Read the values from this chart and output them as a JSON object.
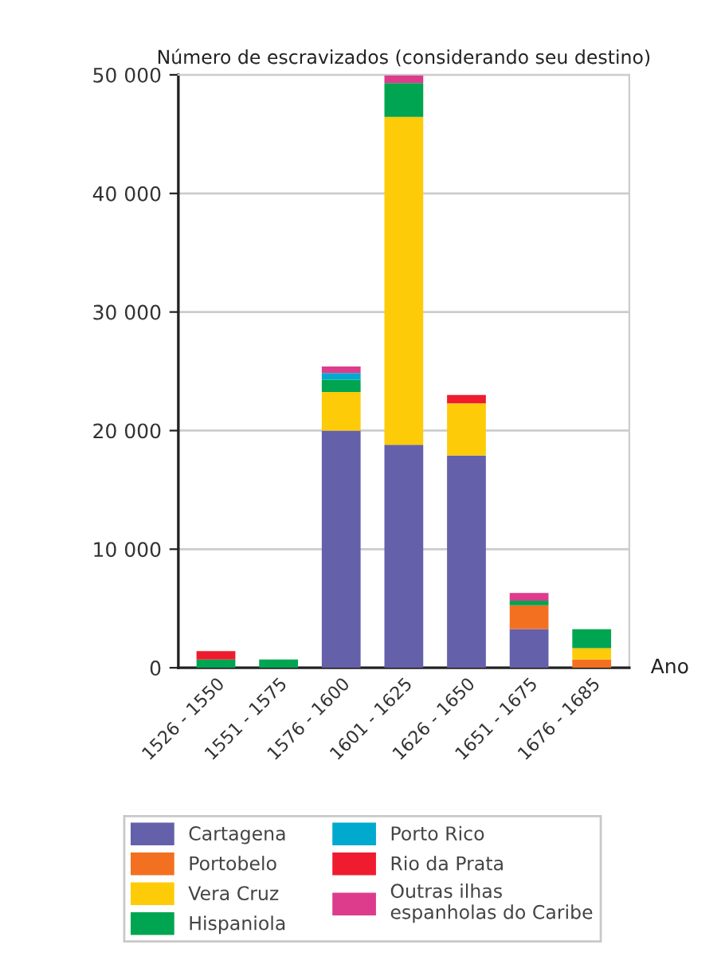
{
  "chart_data": {
    "type": "bar",
    "stacked": true,
    "title": "Número de escravizados (considerando seu destino)",
    "xlabel": "Ano",
    "categories": [
      "1526 - 1550",
      "1551 - 1575",
      "1576 - 1600",
      "1601 - 1625",
      "1626 - 1650",
      "1651 - 1675",
      "1676 - 1685"
    ],
    "series": [
      {
        "name": "Cartagena",
        "color": "#6460aa",
        "values": [
          0,
          0,
          20000,
          18800,
          17900,
          3260,
          0
        ]
      },
      {
        "name": "Portobelo",
        "color": "#f37021",
        "values": [
          0,
          0,
          0,
          0,
          0,
          2000,
          700
        ]
      },
      {
        "name": "Vera Cruz",
        "color": "#fecb08",
        "values": [
          0,
          0,
          3250,
          27650,
          4400,
          0,
          950
        ]
      },
      {
        "name": "Hispaniola",
        "color": "#00a551",
        "values": [
          700,
          700,
          1050,
          2850,
          0,
          400,
          1600
        ]
      },
      {
        "name": "Porto Rico",
        "color": "#00a9ce",
        "values": [
          0,
          0,
          550,
          0,
          0,
          0,
          0
        ]
      },
      {
        "name": "Rio da Prata",
        "color": "#ee1c2e",
        "values": [
          700,
          0,
          0,
          0,
          700,
          0,
          0
        ]
      },
      {
        "name": "Outras ilhas\nespanholas do Caribe",
        "color": "#dc3c8b",
        "values": [
          0,
          0,
          550,
          650,
          0,
          650,
          0
        ]
      }
    ],
    "ylim": [
      0,
      50000
    ],
    "yticks": [
      0,
      {
        "value": 10000,
        "label": "10 000"
      },
      {
        "value": 20000,
        "label": "20 000"
      },
      {
        "value": 30000,
        "label": "30 000"
      },
      {
        "value": 40000,
        "label": "40 000"
      },
      {
        "value": 50000,
        "label": "50 000"
      }
    ],
    "grid": "y",
    "legend": "bottom"
  }
}
